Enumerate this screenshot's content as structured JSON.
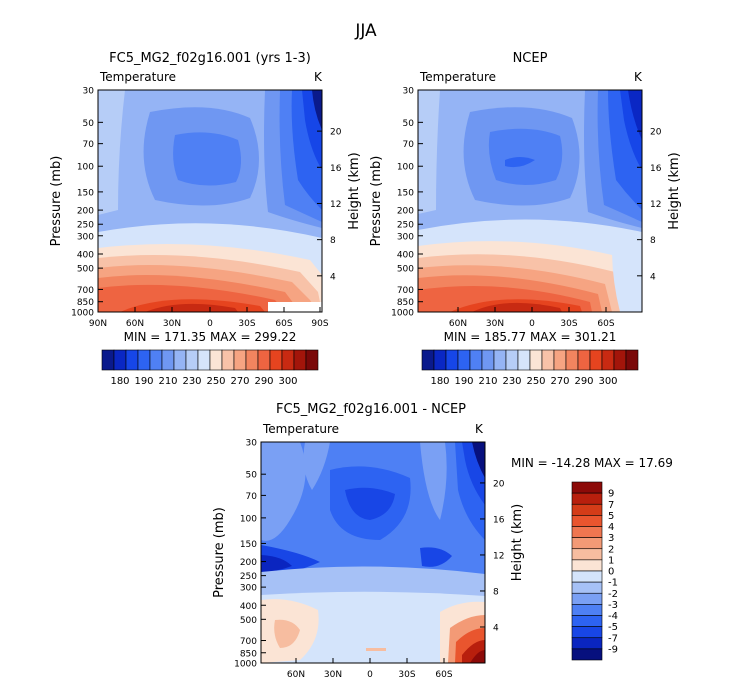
{
  "page": {
    "season": "JJA"
  },
  "colors": {
    "scale_fill": [
      "#0a1a8c",
      "#0a27c4",
      "#1646e8",
      "#2d63f2",
      "#4f80f4",
      "#6f97f2",
      "#95b4f5",
      "#b6cdf7",
      "#d5e4fb",
      "#fbe4d5",
      "#f8c2a8",
      "#f6a482",
      "#f2845f",
      "#ee6441",
      "#e6441f",
      "#c82a12",
      "#a3150a",
      "#7a0808"
    ],
    "diff_fill": [
      "#07107e",
      "#0a25c0",
      "#1846e6",
      "#2d63f2",
      "#4e80f4",
      "#7aa0f4",
      "#a6c1f6",
      "#d4e4fb",
      "#fbe4d5",
      "#f7bda0",
      "#f39a76",
      "#ef7650",
      "#e9552e",
      "#d43c18",
      "#b81f0d",
      "#8c0a08"
    ]
  },
  "chart_data": [
    {
      "id": "model",
      "type": "heatmap",
      "title": "FC5_MG2_f02g16.001 (yrs 1-3)",
      "label_left": "Temperature",
      "label_right": "K",
      "ylabel": "Pressure (mb)",
      "ylabel_right": "Height (km)",
      "x_ticks": [
        "90N",
        "60N",
        "30N",
        "0",
        "30S",
        "60S",
        "90S"
      ],
      "y_ticks": [
        "30",
        "50",
        "70",
        "100",
        "150",
        "200",
        "250",
        "300",
        "400",
        "500",
        "700",
        "850",
        "1000"
      ],
      "height_ticks": [
        "20",
        "16",
        "12",
        "8",
        "4"
      ],
      "min_max_text": "MIN = 171.35   MAX = 299.22",
      "min": 171.35,
      "max": 299.22,
      "colorbar_labels": [
        "180",
        "190",
        "210",
        "230",
        "250",
        "270",
        "290",
        "300"
      ]
    },
    {
      "id": "obs",
      "type": "heatmap",
      "title": "NCEP",
      "label_left": "Temperature",
      "label_right": "K",
      "ylabel": "Pressure (mb)",
      "ylabel_right": "Height (km)",
      "x_ticks": [
        "60N",
        "30N",
        "0",
        "30S",
        "60S"
      ],
      "y_ticks": [
        "30",
        "50",
        "70",
        "100",
        "150",
        "200",
        "250",
        "300",
        "400",
        "500",
        "700",
        "850",
        "1000"
      ],
      "height_ticks": [
        "20",
        "16",
        "12",
        "8",
        "4"
      ],
      "min_max_text": "MIN = 185.77   MAX = 301.21",
      "min": 185.77,
      "max": 301.21,
      "colorbar_labels": [
        "180",
        "190",
        "210",
        "230",
        "250",
        "270",
        "290",
        "300"
      ]
    },
    {
      "id": "diff",
      "type": "heatmap",
      "title": "FC5_MG2_f02g16.001 - NCEP",
      "label_left": "Temperature",
      "label_right": "K",
      "ylabel": "Pressure (mb)",
      "ylabel_right": "Height (km)",
      "x_ticks": [
        "60N",
        "30N",
        "0",
        "30S",
        "60S"
      ],
      "y_ticks": [
        "30",
        "50",
        "70",
        "100",
        "150",
        "200",
        "250",
        "300",
        "400",
        "500",
        "700",
        "850",
        "1000"
      ],
      "height_ticks": [
        "20",
        "16",
        "12",
        "8",
        "4"
      ],
      "min_max_text": "MIN = -14.28   MAX =  17.69",
      "min": -14.28,
      "max": 17.69,
      "colorbar_labels": [
        "9",
        "7",
        "5",
        "4",
        "3",
        "2",
        "1",
        "0",
        "-1",
        "-2",
        "-3",
        "-4",
        "-5",
        "-7",
        "-9"
      ]
    }
  ]
}
